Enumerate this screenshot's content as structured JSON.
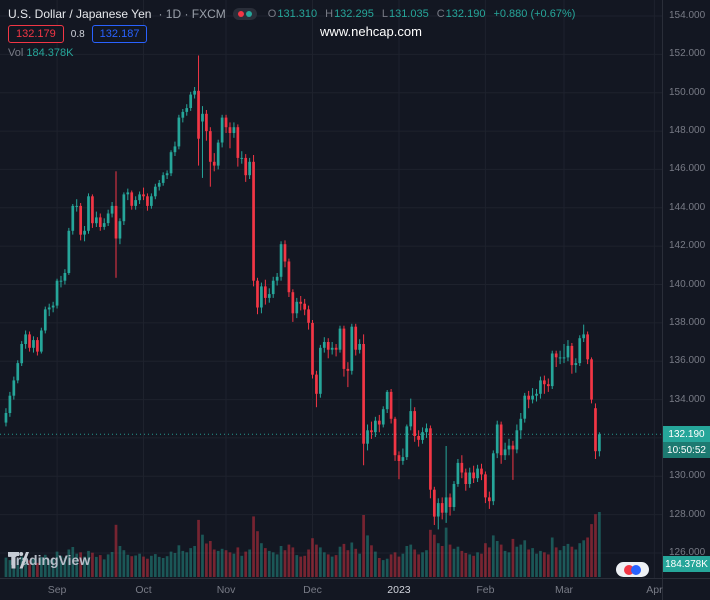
{
  "header": {
    "symbol": "U.S. Dollar / Japanese Yen",
    "meta": "· 1D · FXCM",
    "ohlc": {
      "o_label": "O",
      "open": "131.310",
      "h_label": "H",
      "high": "132.295",
      "l_label": "L",
      "low": "131.035",
      "c_label": "C",
      "close": "132.190",
      "change": "+0.880 (+0.67%)"
    },
    "sell_price": "132.179",
    "spread": "0.8",
    "buy_price": "132.187",
    "vol_label": "Vol",
    "vol_value": "184.378K"
  },
  "watermark": "www.nehcap.com",
  "price_axis": {
    "labels": [
      "154.000",
      "152.000",
      "150.000",
      "148.000",
      "146.000",
      "144.000",
      "142.000",
      "140.000",
      "138.000",
      "136.000",
      "134.000",
      "132.000",
      "130.000",
      "128.000",
      "126.000"
    ],
    "current_price": "132.190",
    "countdown": "10:50:52",
    "volume_label": "184.378K"
  },
  "footer": {
    "logo_text": "TradingView"
  },
  "colors": {
    "bg": "#131722",
    "grid": "#1e222d",
    "axis_border": "#2a2e39",
    "axis_text": "#787b86",
    "up": "#26a69a",
    "down": "#f23645",
    "sell_red": "#f23645",
    "buy_blue": "#2962ff",
    "price_label_bg": "#26a69a",
    "countdown_bg": "#1d7a71"
  },
  "chart_data": {
    "type": "candlestick",
    "symbol": "USD/JPY",
    "interval": "1D",
    "exchange": "FXCM",
    "title": "U.S. Dollar / Japanese Yen · 1D · FXCM",
    "price_range": [
      126,
      154
    ],
    "price_step": 2,
    "grid": true,
    "legend_position": "top-left",
    "last_bar": {
      "open": 131.31,
      "high": 132.295,
      "low": 131.035,
      "close": 132.19,
      "change": 0.88,
      "change_pct": 0.67
    },
    "current_volume_k": 184.378,
    "countdown": "10:50:52",
    "total_slots": 168,
    "time_ticks": [
      {
        "label": "Sep",
        "slot": 13,
        "major": false
      },
      {
        "label": "Oct",
        "slot": 35,
        "major": false
      },
      {
        "label": "Nov",
        "slot": 56,
        "major": false
      },
      {
        "label": "Dec",
        "slot": 78,
        "major": false
      },
      {
        "label": "2023",
        "slot": 100,
        "major": true
      },
      {
        "label": "Feb",
        "slot": 122,
        "major": false
      },
      {
        "label": "Mar",
        "slot": 142,
        "major": false
      },
      {
        "label": "Apr",
        "slot": 165,
        "major": false
      }
    ],
    "ohlc_order": [
      "open",
      "high",
      "low",
      "close"
    ],
    "candles": [
      [
        132.8,
        133.55,
        132.6,
        133.3
      ],
      [
        133.3,
        134.4,
        133.1,
        134.2
      ],
      [
        134.2,
        135.2,
        134.0,
        135.0
      ],
      [
        135.0,
        136.05,
        134.85,
        135.9
      ],
      [
        135.9,
        137.05,
        135.75,
        136.9
      ],
      [
        136.9,
        137.6,
        136.65,
        137.4
      ],
      [
        137.4,
        137.55,
        136.5,
        136.7
      ],
      [
        136.7,
        137.3,
        136.45,
        137.1
      ],
      [
        137.1,
        137.25,
        136.3,
        136.5
      ],
      [
        136.5,
        137.75,
        136.4,
        137.6
      ],
      [
        137.6,
        138.85,
        137.45,
        138.7
      ],
      [
        138.7,
        139.0,
        138.35,
        138.8
      ],
      [
        138.8,
        139.1,
        138.55,
        138.9
      ],
      [
        138.9,
        140.3,
        138.75,
        140.2
      ],
      [
        140.2,
        140.45,
        139.85,
        140.2
      ],
      [
        140.2,
        140.8,
        140.0,
        140.6
      ],
      [
        140.6,
        142.95,
        140.5,
        142.8
      ],
      [
        142.8,
        144.2,
        142.6,
        144.1
      ],
      [
        144.1,
        144.45,
        143.8,
        144.1
      ],
      [
        144.1,
        144.25,
        142.3,
        142.6
      ],
      [
        142.6,
        143.05,
        142.25,
        142.8
      ],
      [
        142.8,
        144.75,
        142.65,
        144.6
      ],
      [
        144.6,
        144.7,
        142.95,
        143.2
      ],
      [
        143.2,
        143.8,
        143.0,
        143.5
      ],
      [
        143.5,
        143.7,
        142.8,
        143.0
      ],
      [
        143.0,
        143.45,
        142.85,
        143.2
      ],
      [
        143.2,
        143.9,
        143.05,
        143.7
      ],
      [
        143.7,
        144.3,
        143.5,
        144.1
      ],
      [
        144.1,
        145.9,
        140.35,
        142.4
      ],
      [
        142.4,
        143.45,
        142.1,
        143.3
      ],
      [
        143.3,
        144.8,
        143.1,
        144.7
      ],
      [
        144.7,
        145.0,
        144.4,
        144.8
      ],
      [
        144.8,
        144.9,
        143.9,
        144.1
      ],
      [
        144.1,
        144.6,
        143.9,
        144.4
      ],
      [
        144.4,
        144.85,
        144.2,
        144.7
      ],
      [
        144.7,
        145.05,
        144.4,
        144.6
      ],
      [
        144.6,
        144.75,
        143.85,
        144.1
      ],
      [
        144.1,
        144.75,
        143.95,
        144.6
      ],
      [
        144.6,
        145.25,
        144.45,
        145.1
      ],
      [
        145.1,
        145.45,
        144.9,
        145.3
      ],
      [
        145.3,
        145.85,
        145.15,
        145.7
      ],
      [
        145.7,
        145.95,
        145.5,
        145.8
      ],
      [
        145.8,
        147.0,
        145.65,
        146.9
      ],
      [
        146.9,
        147.45,
        146.7,
        147.2
      ],
      [
        147.2,
        148.85,
        147.05,
        148.7
      ],
      [
        148.7,
        149.15,
        148.45,
        149.0
      ],
      [
        149.0,
        149.4,
        148.8,
        149.2
      ],
      [
        149.2,
        150.05,
        149.05,
        149.9
      ],
      [
        149.9,
        150.3,
        149.7,
        150.1
      ],
      [
        150.1,
        151.94,
        146.2,
        147.6
      ],
      [
        148.5,
        149.3,
        145.56,
        148.9
      ],
      [
        148.9,
        149.1,
        147.5,
        148.0
      ],
      [
        148.0,
        148.2,
        145.1,
        146.4
      ],
      [
        146.4,
        146.85,
        145.9,
        146.2
      ],
      [
        146.2,
        147.55,
        146.0,
        147.4
      ],
      [
        147.4,
        148.85,
        147.15,
        148.7
      ],
      [
        148.7,
        148.85,
        147.9,
        148.2
      ],
      [
        148.2,
        148.45,
        147.1,
        147.9
      ],
      [
        147.9,
        148.45,
        147.65,
        148.2
      ],
      [
        148.2,
        148.35,
        146.15,
        146.6
      ],
      [
        146.6,
        146.95,
        146.3,
        146.6
      ],
      [
        146.6,
        146.8,
        145.35,
        145.7
      ],
      [
        145.7,
        146.6,
        145.5,
        146.4
      ],
      [
        146.4,
        146.75,
        139.9,
        140.2
      ],
      [
        140.2,
        140.35,
        138.45,
        138.8
      ],
      [
        138.8,
        140.1,
        138.5,
        139.9
      ],
      [
        139.9,
        140.25,
        138.95,
        139.3
      ],
      [
        139.3,
        139.8,
        139.05,
        139.5
      ],
      [
        139.5,
        140.4,
        139.3,
        140.2
      ],
      [
        140.2,
        140.6,
        139.95,
        140.4
      ],
      [
        140.4,
        142.25,
        140.2,
        142.1
      ],
      [
        142.1,
        142.3,
        140.9,
        141.2
      ],
      [
        141.2,
        141.35,
        139.35,
        139.6
      ],
      [
        139.6,
        139.75,
        138.05,
        138.5
      ],
      [
        138.5,
        139.3,
        138.25,
        139.1
      ],
      [
        139.1,
        139.4,
        138.65,
        139.0
      ],
      [
        139.0,
        139.25,
        138.4,
        138.7
      ],
      [
        138.7,
        138.9,
        137.65,
        138.0
      ],
      [
        138.0,
        138.15,
        135.1,
        135.3
      ],
      [
        135.3,
        135.5,
        133.6,
        134.3
      ],
      [
        134.3,
        136.85,
        134.1,
        136.7
      ],
      [
        136.7,
        137.25,
        136.45,
        137.0
      ],
      [
        137.0,
        137.2,
        136.15,
        136.6
      ],
      [
        136.6,
        137.0,
        136.35,
        136.7
      ],
      [
        136.7,
        136.9,
        136.25,
        136.6
      ],
      [
        136.6,
        137.85,
        136.45,
        137.7
      ],
      [
        137.7,
        137.85,
        135.2,
        135.6
      ],
      [
        135.6,
        135.95,
        134.65,
        135.5
      ],
      [
        135.5,
        137.95,
        135.3,
        137.8
      ],
      [
        137.8,
        137.95,
        136.3,
        136.6
      ],
      [
        136.6,
        137.15,
        136.4,
        136.9
      ],
      [
        136.9,
        137.4,
        130.58,
        131.7
      ],
      [
        131.7,
        132.7,
        131.35,
        132.4
      ],
      [
        132.4,
        132.85,
        131.95,
        132.3
      ],
      [
        132.3,
        133.1,
        132.05,
        132.9
      ],
      [
        132.9,
        133.2,
        132.3,
        132.7
      ],
      [
        132.7,
        133.65,
        132.55,
        133.5
      ],
      [
        133.5,
        134.5,
        133.3,
        134.4
      ],
      [
        134.4,
        134.55,
        132.75,
        133.0
      ],
      [
        133.0,
        133.1,
        130.8,
        131.1
      ],
      [
        131.1,
        131.3,
        129.85,
        130.8
      ],
      [
        130.8,
        131.45,
        130.6,
        131.0
      ],
      [
        131.0,
        132.7,
        130.85,
        132.6
      ],
      [
        132.6,
        134.05,
        132.4,
        133.4
      ],
      [
        133.4,
        133.6,
        131.8,
        132.1
      ],
      [
        132.1,
        132.4,
        131.55,
        131.9
      ],
      [
        131.9,
        132.55,
        131.7,
        132.3
      ],
      [
        132.3,
        132.75,
        132.0,
        132.5
      ],
      [
        132.5,
        132.65,
        128.85,
        129.3
      ],
      [
        129.3,
        129.45,
        127.46,
        127.9
      ],
      [
        127.9,
        128.85,
        127.23,
        128.6
      ],
      [
        128.6,
        128.9,
        127.75,
        128.1
      ],
      [
        128.1,
        131.58,
        127.57,
        128.9
      ],
      [
        128.9,
        129.1,
        127.95,
        128.4
      ],
      [
        128.4,
        129.75,
        128.2,
        129.6
      ],
      [
        129.6,
        130.9,
        129.45,
        130.7
      ],
      [
        130.7,
        131.1,
        129.9,
        130.2
      ],
      [
        130.2,
        130.4,
        129.25,
        129.6
      ],
      [
        129.6,
        130.45,
        129.4,
        130.2
      ],
      [
        130.2,
        130.55,
        129.65,
        129.9
      ],
      [
        129.9,
        130.6,
        129.7,
        130.4
      ],
      [
        130.4,
        130.65,
        129.8,
        130.1
      ],
      [
        130.1,
        130.25,
        128.6,
        128.9
      ],
      [
        128.9,
        129.2,
        128.3,
        128.7
      ],
      [
        128.7,
        131.35,
        128.5,
        131.2
      ],
      [
        131.2,
        132.9,
        130.95,
        132.7
      ],
      [
        132.7,
        132.85,
        130.65,
        131.1
      ],
      [
        131.1,
        131.75,
        130.85,
        131.4
      ],
      [
        131.4,
        131.95,
        131.1,
        131.6
      ],
      [
        131.6,
        131.85,
        129.81,
        131.4
      ],
      [
        131.4,
        132.7,
        131.2,
        132.4
      ],
      [
        132.4,
        133.3,
        131.95,
        133.0
      ],
      [
        133.0,
        134.35,
        132.8,
        134.2
      ],
      [
        134.2,
        134.45,
        133.55,
        134.0
      ],
      [
        134.0,
        134.6,
        133.8,
        134.2
      ],
      [
        134.2,
        134.55,
        133.9,
        134.3
      ],
      [
        134.3,
        135.2,
        134.05,
        135.0
      ],
      [
        135.0,
        135.25,
        134.3,
        134.8
      ],
      [
        134.8,
        135.1,
        134.4,
        134.7
      ],
      [
        134.7,
        136.55,
        134.55,
        136.4
      ],
      [
        136.4,
        136.55,
        135.7,
        136.2
      ],
      [
        136.2,
        136.55,
        135.85,
        136.2
      ],
      [
        136.2,
        136.9,
        135.9,
        136.2
      ],
      [
        136.2,
        137.1,
        136.0,
        136.8
      ],
      [
        136.8,
        136.95,
        135.35,
        135.8
      ],
      [
        135.8,
        136.15,
        135.4,
        135.9
      ],
      [
        135.9,
        137.35,
        135.75,
        137.2
      ],
      [
        137.2,
        137.91,
        137.0,
        137.4
      ],
      [
        137.4,
        137.55,
        135.85,
        136.1
      ],
      [
        136.1,
        136.2,
        133.8,
        134.0
      ],
      [
        133.55,
        133.8,
        130.9,
        131.31
      ],
      [
        131.31,
        132.295,
        131.035,
        132.19
      ]
    ],
    "volumes_k": [
      55,
      48,
      62,
      51,
      58,
      44,
      47,
      52,
      40,
      57,
      63,
      49,
      54,
      72,
      60,
      55,
      78,
      85,
      66,
      70,
      58,
      74,
      69,
      57,
      62,
      50,
      64,
      71,
      148,
      88,
      76,
      63,
      59,
      61,
      66,
      58,
      52,
      60,
      65,
      57,
      54,
      59,
      72,
      68,
      90,
      74,
      70,
      82,
      88,
      162,
      120,
      95,
      102,
      78,
      74,
      80,
      76,
      70,
      66,
      84,
      60,
      72,
      78,
      172,
      130,
      96,
      82,
      74,
      70,
      64,
      88,
      76,
      92,
      84,
      62,
      58,
      60,
      78,
      110,
      92,
      84,
      70,
      64,
      58,
      62,
      86,
      94,
      76,
      98,
      80,
      66,
      176,
      118,
      90,
      72,
      54,
      48,
      52,
      64,
      70,
      58,
      66,
      88,
      92,
      78,
      64,
      70,
      76,
      134,
      120,
      96,
      88,
      140,
      92,
      80,
      86,
      74,
      68,
      64,
      60,
      70,
      66,
      96,
      84,
      118,
      102,
      92,
      74,
      70,
      108,
      86,
      92,
      104,
      78,
      82,
      66,
      74,
      70,
      64,
      112,
      84,
      76,
      88,
      94,
      86,
      78,
      96,
      104,
      112,
      150,
      178,
      184.378
    ]
  }
}
